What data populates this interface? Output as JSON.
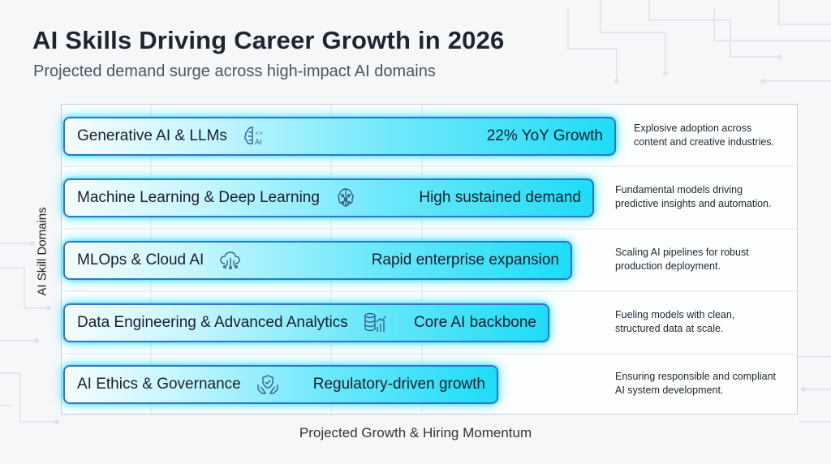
{
  "header": {
    "title": "AI Skills Driving Career Growth in 2026",
    "subtitle": "Projected demand surge across high-impact AI domains"
  },
  "chart_data": {
    "type": "bar",
    "orientation": "horizontal",
    "title": "AI Skills Driving Career Growth in 2026",
    "subtitle": "Projected demand surge across high-impact AI domains",
    "xlabel": "Projected Growth & Hiring Momentum",
    "ylabel": "AI Skill Domains",
    "grid": true,
    "legend": "none",
    "categories": [
      "Generative AI & LLMs",
      "Machine Learning & Deep Learning",
      "MLOps & Cloud AI",
      "Data Engineering & Advanced Analytics",
      "AI Ethics & Governance"
    ],
    "values": [
      0.75,
      0.72,
      0.69,
      0.66,
      0.59
    ],
    "data_labels": [
      "22% YoY Growth",
      "High sustained demand",
      "Rapid enterprise expansion",
      "Core AI backbone",
      "Regulatory-driven growth"
    ],
    "annotations": [
      [
        "Explosive adoption across",
        "content and creative industries."
      ],
      [
        "Fundamental models driving",
        "predictive insights and automation."
      ],
      [
        "Scaling AI pipelines for robust",
        "production deployment."
      ],
      [
        "Fueling models with clean,",
        "structured data at scale."
      ],
      [
        "Ensuring responsible and compliant",
        "AI system development."
      ]
    ],
    "icons": [
      "brain-ai-icon",
      "neural-brain-icon",
      "cloud-network-icon",
      "database-chart-icon",
      "ethics-hands-icon"
    ],
    "colors": {
      "bar_fill": "#1fdcf7",
      "bar_border": "#2f76c6",
      "glow": "#00dcff"
    }
  }
}
